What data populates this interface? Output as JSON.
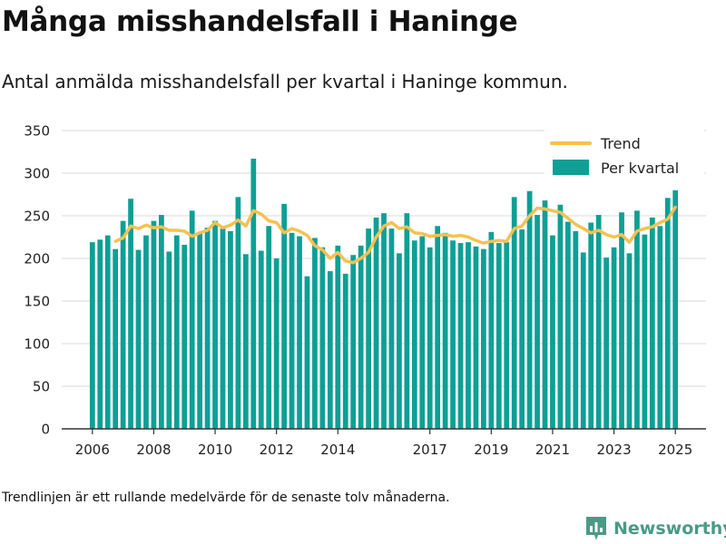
{
  "title": "Många misshandelsfall i Haninge",
  "subtitle": "Antal anmälda misshandelsfall per kvartal i Haninge kommun.",
  "footnote": "Trendlinjen är ett rullande medelvärde för de senaste tolv månaderna.",
  "brand": "Newsworthy",
  "colors": {
    "bars": "#0e9f95",
    "trend": "#f5c151",
    "grid": "#d9d9d9",
    "axis": "#333333",
    "brand": "#4a9a86"
  },
  "chart_data": {
    "type": "bar",
    "xlabel": "",
    "ylabel": "",
    "ylim": [
      0,
      350
    ],
    "xlim": [
      2005.0,
      2026.0
    ],
    "y_ticks": [
      0,
      50,
      100,
      150,
      200,
      250,
      300,
      350
    ],
    "x_ticks": [
      {
        "value": 2006.0,
        "label": "2006"
      },
      {
        "value": 2008.0,
        "label": "2008"
      },
      {
        "value": 2010.0,
        "label": "2010"
      },
      {
        "value": 2012.0,
        "label": "2012"
      },
      {
        "value": 2014.0,
        "label": "2014"
      },
      {
        "value": 2017.0,
        "label": "2017"
      },
      {
        "value": 2019.0,
        "label": "2019"
      },
      {
        "value": 2021.0,
        "label": "2021"
      },
      {
        "value": 2023.0,
        "label": "2023"
      },
      {
        "value": 2025.0,
        "label": "2025"
      }
    ],
    "grid": true,
    "legend_position": "top-right",
    "x_start": 2006.0,
    "x_step": 0.25,
    "series": [
      {
        "name": "Per kvartal",
        "type": "bar",
        "color": "#0e9f95",
        "values": [
          219,
          222,
          227,
          211,
          244,
          270,
          210,
          227,
          244,
          251,
          208,
          227,
          216,
          256,
          231,
          236,
          244,
          235,
          232,
          272,
          205,
          317,
          209,
          238,
          200,
          264,
          230,
          226,
          179,
          224,
          213,
          185,
          215,
          182,
          204,
          215,
          235,
          248,
          253,
          235,
          206,
          253,
          221,
          226,
          213,
          238,
          230,
          221,
          218,
          219,
          214,
          211,
          231,
          218,
          219,
          272,
          234,
          279,
          251,
          268,
          227,
          263,
          243,
          232,
          207,
          242,
          251,
          201,
          213,
          254,
          206,
          256,
          228,
          248,
          238,
          271,
          280
        ]
      },
      {
        "name": "Trend",
        "type": "line",
        "color": "#f5c151",
        "values": [
          null,
          null,
          null,
          220,
          224,
          238,
          235,
          239,
          236,
          237,
          233,
          233,
          232,
          226,
          230,
          233,
          242,
          236,
          239,
          245,
          238,
          256,
          252,
          244,
          242,
          230,
          235,
          232,
          227,
          215,
          210,
          200,
          207,
          197,
          195,
          200,
          207,
          225,
          238,
          242,
          235,
          237,
          230,
          229,
          226,
          227,
          228,
          226,
          227,
          225,
          221,
          218,
          220,
          221,
          220,
          235,
          238,
          250,
          259,
          258,
          256,
          254,
          247,
          240,
          235,
          230,
          233,
          228,
          225,
          228,
          219,
          232,
          235,
          237,
          242,
          246,
          260
        ]
      }
    ]
  }
}
